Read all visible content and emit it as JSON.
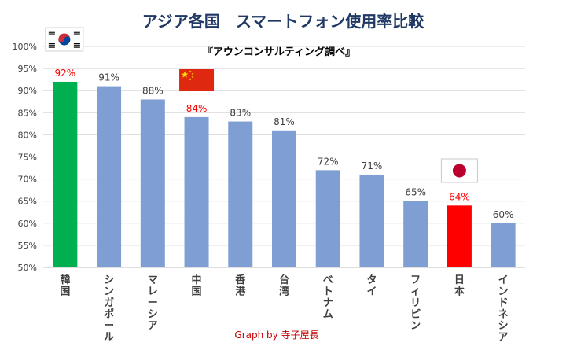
{
  "chart_data": {
    "type": "bar",
    "title": "アジア各国　スマートフォン使用率比較",
    "subtitle": "『アウンコンサルティング調べ』",
    "credit_prefix": "Graph by ",
    "credit_name": "寺子屋長",
    "categories": [
      "韓国",
      "シンガポール",
      "マレーシア",
      "中国",
      "香港",
      "台湾",
      "ベトナム",
      "タイ",
      "フィリピン",
      "日本",
      "インドネシア"
    ],
    "values": [
      92,
      91,
      88,
      84,
      83,
      81,
      72,
      71,
      65,
      64,
      60
    ],
    "data_labels": [
      "92%",
      "91%",
      "88%",
      "84%",
      "83%",
      "81%",
      "72%",
      "71%",
      "65%",
      "64%",
      "60%"
    ],
    "bar_colors": [
      "#00b050",
      "#7f9fd4",
      "#7f9fd4",
      "#7f9fd4",
      "#7f9fd4",
      "#7f9fd4",
      "#7f9fd4",
      "#7f9fd4",
      "#7f9fd4",
      "#ff0000",
      "#7f9fd4"
    ],
    "label_colors": [
      "#ff0000",
      "#404040",
      "#404040",
      "#ff0000",
      "#404040",
      "#404040",
      "#404040",
      "#404040",
      "#404040",
      "#ff0000",
      "#404040"
    ],
    "y_ticks": [
      "50%",
      "55%",
      "60%",
      "65%",
      "70%",
      "75%",
      "80%",
      "85%",
      "90%",
      "95%",
      "100%"
    ],
    "ylim": [
      50,
      100
    ],
    "grid": true,
    "flags": [
      {
        "name": "korea-flag-icon",
        "category": "韓国"
      },
      {
        "name": "china-flag-icon",
        "category": "中国"
      },
      {
        "name": "japan-flag-icon",
        "category": "日本"
      }
    ],
    "colors": {
      "title": "#1f3864",
      "grid": "#d9d9d9",
      "axis_text": "#404040",
      "credit": "#c00000"
    }
  }
}
